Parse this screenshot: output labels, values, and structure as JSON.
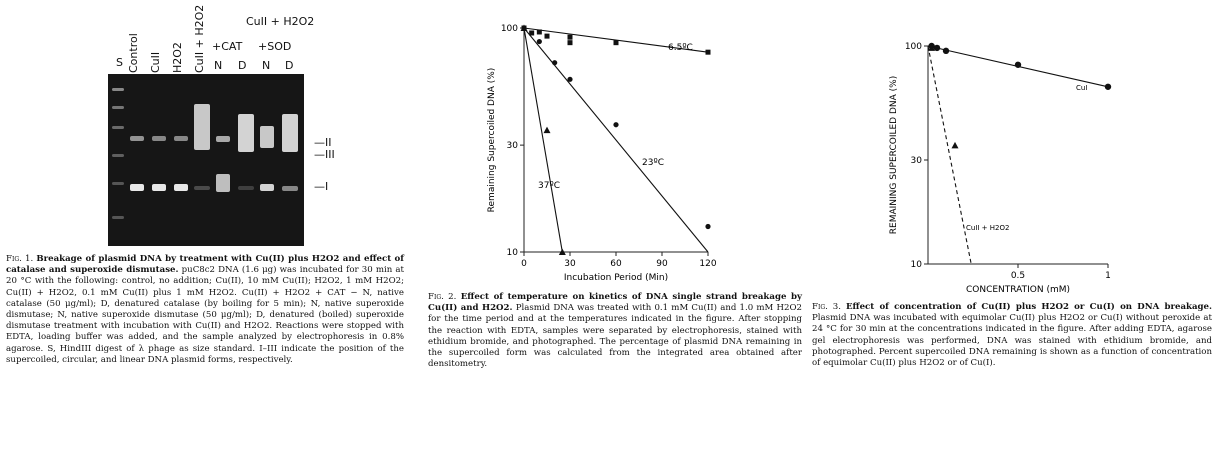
{
  "figure1": {
    "lanes": [
      "S",
      "Control",
      "CuII",
      "H2O2",
      "CuII + H2O2",
      "N",
      "D",
      "N",
      "D"
    ],
    "group_header": "CuII + H2O2",
    "sub_headers": [
      "+CAT",
      "+SOD"
    ],
    "markers": [
      "II",
      "III",
      "I"
    ],
    "caption": {
      "label": "Fig. 1.",
      "title": "Breakage of plasmid DNA by treatment with Cu(II) plus H2O2 and effect of catalase and superoxide dismutase.",
      "body": "puC8c2 DNA (1.6 μg) was incubated for 30 min at 20 °C with the following: control, no addition; Cu(II), 10 mM Cu(II); H2O2, 1 mM H2O2; Cu(II) + H2O2, 0.1 mM Cu(II) plus 1 mM H2O2. Cu(II) + H2O2 + CAT − N, native catalase (50 μg/ml); D, denatured catalase (by boiling for 5 min); N, native superoxide dismutase; N, native superoxide dismutase (50 μg/ml); D, denatured (boiled) superoxide dismutase treatment with incubation with Cu(II) and H2O2. Reactions were stopped with EDTA, loading buffer was added, and the sample analyzed by electrophoresis in 0.8% agarose. S, HindIII digest of λ phage as size standard. I–III indicate the position of the supercoiled, circular, and linear DNA plasmid forms, respectively."
    }
  },
  "figure2": {
    "chart_data": {
      "type": "scatter",
      "xlabel": "Incubation Period (Min)",
      "ylabel": "Remaining Supercoiled DNA (%)",
      "xlim": [
        0,
        120
      ],
      "ylim": [
        10,
        100
      ],
      "yscale": "log",
      "x_ticks": [
        "0",
        "30",
        "60",
        "90",
        "120"
      ],
      "y_ticks": [
        "10",
        "30",
        "100"
      ],
      "series": [
        {
          "name": "6.5ºC",
          "marker": "square",
          "points": [
            [
              0,
              100
            ],
            [
              5,
              95
            ],
            [
              10,
              96
            ],
            [
              15,
              92
            ],
            [
              30,
              91
            ],
            [
              30,
              86
            ],
            [
              60,
              86
            ],
            [
              120,
              78
            ]
          ],
          "fit": [
            [
              0,
              100
            ],
            [
              120,
              78
            ]
          ]
        },
        {
          "name": "23ºC",
          "marker": "circle",
          "points": [
            [
              0,
              100
            ],
            [
              10,
              87
            ],
            [
              20,
              70
            ],
            [
              30,
              59
            ],
            [
              60,
              37
            ],
            [
              120,
              13
            ]
          ],
          "fit": [
            [
              0,
              100
            ],
            [
              120,
              10
            ]
          ]
        },
        {
          "name": "37ºC",
          "marker": "triangle",
          "points": [
            [
              0,
              100
            ],
            [
              15,
              35
            ],
            [
              25,
              10
            ]
          ],
          "fit": [
            [
              0,
              100
            ],
            [
              25,
              10
            ]
          ]
        }
      ]
    },
    "caption": {
      "label": "Fig. 2.",
      "title": "Effect of temperature on kinetics of DNA single strand breakage by Cu(II) and H2O2.",
      "body": "Plasmid DNA was treated with 0.1 mM Cu(II) and 1.0 mM H2O2 for the time period and at the temperatures indicated in the figure. After stopping the reaction with EDTA, samples were separated by electrophoresis, stained with ethidium bromide, and photographed. The percentage of plasmid DNA remaining in the supercoiled form was calculated from the integrated area obtained after densitometry."
    }
  },
  "figure3": {
    "chart_data": {
      "type": "scatter",
      "xlabel": "CONCENTRATION (mM)",
      "ylabel": "REMAINING SUPERCOILED DNA (%)",
      "xlim": [
        0,
        1
      ],
      "ylim": [
        10,
        100
      ],
      "yscale": "log",
      "x_ticks": [
        "0.5",
        "1"
      ],
      "y_ticks": [
        "10",
        "30",
        "100"
      ],
      "series": [
        {
          "name": "CuI",
          "marker": "circle",
          "points": [
            [
              0.02,
              100
            ],
            [
              0.05,
              98
            ],
            [
              0.1,
              95
            ],
            [
              0.5,
              82
            ],
            [
              1,
              65
            ]
          ],
          "fit": [
            [
              0,
              100
            ],
            [
              1,
              65
            ]
          ],
          "line": "solid"
        },
        {
          "name": "CuII + H2O2",
          "marker": "triangle",
          "points": [
            [
              0.02,
              98
            ],
            [
              0.15,
              35
            ]
          ],
          "fit": [
            [
              0,
              100
            ],
            [
              0.24,
              10
            ]
          ],
          "line": "dashed"
        }
      ]
    },
    "caption": {
      "label": "Fig. 3.",
      "title": "Effect of concentration of Cu(II) plus H2O2 or Cu(I) on DNA breakage.",
      "body": "Plasmid DNA was incubated with equimolar Cu(II) plus H2O2 or Cu(I) without peroxide at 24 °C for 30 min at the concentrations indicated in the figure. After adding EDTA, agarose gel electrophoresis was performed, DNA was stained with ethidium bromide, and photographed. Percent supercoiled DNA remaining is shown as a function of concentration of equimolar Cu(II) plus H2O2 or of Cu(I)."
    }
  }
}
